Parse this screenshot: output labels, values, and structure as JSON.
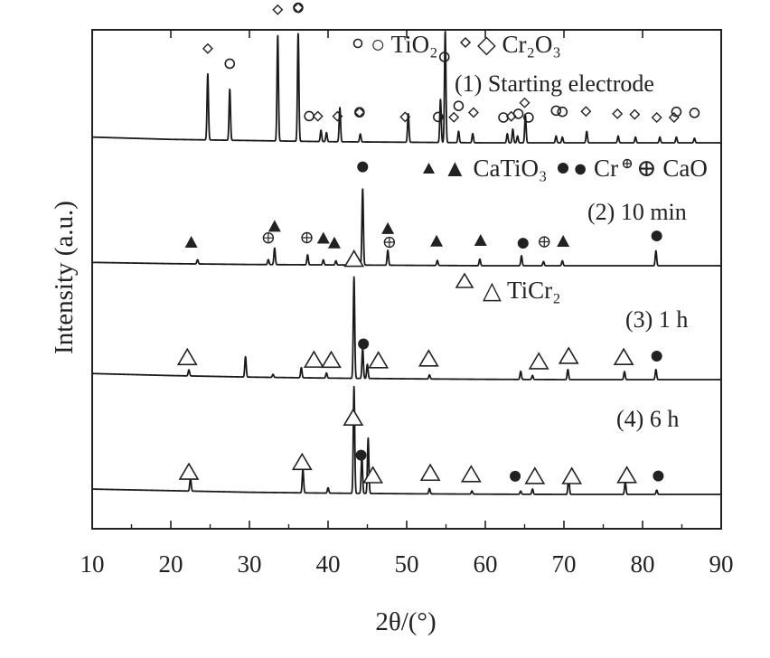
{
  "chart_data": {
    "type": "line",
    "title": "",
    "xlabel": "2θ/(°)",
    "ylabel": "Intensity (a.u.)",
    "xlim": [
      10,
      90
    ],
    "xticks": [
      10,
      20,
      30,
      40,
      50,
      60,
      70,
      80,
      90
    ],
    "y_tick_labels": "none",
    "grid": false,
    "legend": {
      "TiO2": "○ TiO₂",
      "Cr2O3": "◇ Cr₂O₃",
      "CaTiO3": "▲ CaTiO₃",
      "Cr": "● Cr",
      "CaO": "⊕ CaO",
      "TiCr2": "△ TiCr₂"
    },
    "series": [
      {
        "name": "(1) Starting electrode",
        "baseline": [
          [
            10,
            0.05
          ],
          [
            20,
            0.03
          ],
          [
            30,
            0.02
          ],
          [
            40,
            0.01
          ],
          [
            50,
            0.005
          ],
          [
            60,
            0.0
          ],
          [
            70,
            0.0
          ],
          [
            80,
            0.0
          ],
          [
            90,
            0.0
          ]
        ],
        "peaks": [
          {
            "x": 24.7,
            "h": 0.58,
            "phase": "Cr2O3"
          },
          {
            "x": 27.5,
            "h": 0.45,
            "phase": "TiO2"
          },
          {
            "x": 33.6,
            "h": 0.93,
            "phase": "Cr2O3"
          },
          {
            "x": 36.2,
            "h": 0.95,
            "phase": "Cr2O3"
          },
          {
            "x": 39.1,
            "h": 0.1,
            "phase": "TiO2"
          },
          {
            "x": 39.8,
            "h": 0.08,
            "phase": "Cr2O3"
          },
          {
            "x": 41.5,
            "h": 0.3,
            "phase": "Cr2O3"
          },
          {
            "x": 44.1,
            "h": 0.07,
            "phase": "TiO2"
          },
          {
            "x": 50.2,
            "h": 0.25,
            "phase": "Cr2O3"
          },
          {
            "x": 54.3,
            "h": 0.38,
            "phase": "TiO2"
          },
          {
            "x": 54.9,
            "h": 0.98,
            "phase": "Cr2O3"
          },
          {
            "x": 56.6,
            "h": 0.1,
            "phase": "TiO2"
          },
          {
            "x": 58.4,
            "h": 0.08,
            "phase": "Cr2O3"
          },
          {
            "x": 62.8,
            "h": 0.08,
            "phase": "TiO2"
          },
          {
            "x": 63.5,
            "h": 0.12,
            "phase": "Cr2O3"
          },
          {
            "x": 64.1,
            "h": 0.06,
            "phase": "TiO2"
          },
          {
            "x": 65.1,
            "h": 0.24,
            "phase": "Cr2O3"
          },
          {
            "x": 69.0,
            "h": 0.06,
            "phase": "TiO2"
          },
          {
            "x": 69.8,
            "h": 0.05,
            "phase": "TiO2"
          },
          {
            "x": 72.9,
            "h": 0.1,
            "phase": "Cr2O3"
          },
          {
            "x": 76.9,
            "h": 0.06,
            "phase": "Cr2O3"
          },
          {
            "x": 79.1,
            "h": 0.05,
            "phase": "Cr2O3"
          },
          {
            "x": 82.2,
            "h": 0.05,
            "phase": "Cr2O3"
          },
          {
            "x": 84.3,
            "h": 0.05,
            "phase": "Cr2O3"
          },
          {
            "x": 86.6,
            "h": 0.04,
            "phase": "TiO2"
          }
        ]
      },
      {
        "name": "(2) 10 min",
        "baseline": [
          [
            10,
            0.04
          ],
          [
            20,
            0.025
          ],
          [
            30,
            0.015
          ],
          [
            40,
            0.01
          ],
          [
            50,
            0.005
          ],
          [
            60,
            0.0
          ],
          [
            70,
            0.0
          ],
          [
            80,
            0.0
          ],
          [
            90,
            0.0
          ]
        ],
        "peaks": [
          {
            "x": 23.4,
            "h": 0.05,
            "phase": "CaTiO3"
          },
          {
            "x": 32.4,
            "h": 0.06,
            "phase": "CaO"
          },
          {
            "x": 33.2,
            "h": 0.2,
            "phase": "CaTiO3"
          },
          {
            "x": 37.4,
            "h": 0.12,
            "phase": "CaO"
          },
          {
            "x": 39.4,
            "h": 0.06,
            "phase": "CaTiO3"
          },
          {
            "x": 41.0,
            "h": 0.05,
            "phase": "CaTiO3"
          },
          {
            "x": 44.4,
            "h": 0.92,
            "phase": "Cr"
          },
          {
            "x": 47.6,
            "h": 0.18,
            "phase": "CaTiO3"
          },
          {
            "x": 53.9,
            "h": 0.06,
            "phase": "CaTiO3"
          },
          {
            "x": 59.3,
            "h": 0.08,
            "phase": "CaTiO3"
          },
          {
            "x": 64.6,
            "h": 0.12,
            "phase": "Cr"
          },
          {
            "x": 67.4,
            "h": 0.05,
            "phase": "CaO"
          },
          {
            "x": 69.8,
            "h": 0.06,
            "phase": "CaTiO3"
          },
          {
            "x": 81.7,
            "h": 0.18,
            "phase": "Cr"
          }
        ]
      },
      {
        "name": "(3) 1 h",
        "baseline": [
          [
            10,
            0.06
          ],
          [
            20,
            0.04
          ],
          [
            30,
            0.025
          ],
          [
            40,
            0.015
          ],
          [
            50,
            0.008
          ],
          [
            60,
            0.003
          ],
          [
            70,
            0.0
          ],
          [
            80,
            0.0
          ],
          [
            90,
            0.0
          ]
        ],
        "peaks": [
          {
            "x": 22.3,
            "h": 0.06,
            "phase": "TiCr2"
          },
          {
            "x": 29.5,
            "h": 0.2,
            "phase": "unlabeled"
          },
          {
            "x": 33.0,
            "h": 0.03,
            "phase": "unlabeled"
          },
          {
            "x": 36.6,
            "h": 0.1,
            "phase": "TiCr2"
          },
          {
            "x": 39.8,
            "h": 0.05,
            "phase": "TiCr2"
          },
          {
            "x": 43.3,
            "h": 1.0,
            "phase": "TiCr2"
          },
          {
            "x": 44.4,
            "h": 0.3,
            "phase": "Cr"
          },
          {
            "x": 45.0,
            "h": 0.14,
            "phase": "TiCr2"
          },
          {
            "x": 52.9,
            "h": 0.04,
            "phase": "TiCr2"
          },
          {
            "x": 64.5,
            "h": 0.08,
            "phase": "Cr"
          },
          {
            "x": 66.0,
            "h": 0.04,
            "phase": "TiCr2"
          },
          {
            "x": 70.5,
            "h": 0.1,
            "phase": "TiCr2"
          },
          {
            "x": 77.7,
            "h": 0.08,
            "phase": "TiCr2"
          },
          {
            "x": 81.7,
            "h": 0.1,
            "phase": "Cr"
          }
        ]
      },
      {
        "name": "(4) 6 h",
        "baseline": [
          [
            10,
            0.05
          ],
          [
            20,
            0.035
          ],
          [
            30,
            0.02
          ],
          [
            40,
            0.012
          ],
          [
            50,
            0.006
          ],
          [
            60,
            0.002
          ],
          [
            70,
            0.0
          ],
          [
            80,
            0.0
          ],
          [
            90,
            0.0
          ]
        ],
        "peaks": [
          {
            "x": 22.5,
            "h": 0.12,
            "phase": "TiCr2"
          },
          {
            "x": 36.8,
            "h": 0.22,
            "phase": "TiCr2"
          },
          {
            "x": 40.0,
            "h": 0.05,
            "phase": "TiCr2"
          },
          {
            "x": 43.3,
            "h": 1.0,
            "phase": "TiCr2"
          },
          {
            "x": 44.3,
            "h": 0.35,
            "phase": "Cr"
          },
          {
            "x": 45.1,
            "h": 0.52,
            "phase": "TiCr2"
          },
          {
            "x": 52.9,
            "h": 0.05,
            "phase": "TiCr2"
          },
          {
            "x": 58.3,
            "h": 0.03,
            "phase": "TiCr2"
          },
          {
            "x": 64.5,
            "h": 0.03,
            "phase": "Cr"
          },
          {
            "x": 66.0,
            "h": 0.05,
            "phase": "TiCr2"
          },
          {
            "x": 70.6,
            "h": 0.16,
            "phase": "TiCr2"
          },
          {
            "x": 77.8,
            "h": 0.12,
            "phase": "TiCr2"
          },
          {
            "x": 81.8,
            "h": 0.04,
            "phase": "Cr"
          }
        ]
      }
    ],
    "markers": [
      {
        "series": 0,
        "phase": "Cr2O3",
        "x": 24.7
      },
      {
        "series": 0,
        "phase": "TiO2",
        "x": 27.5
      },
      {
        "series": 0,
        "phase": "Cr2O3",
        "x": 33.6
      },
      {
        "series": 0,
        "phase": "Cr2O3",
        "x": 36.2
      },
      {
        "series": 0,
        "phase": "TiO2",
        "x": 36.2
      },
      {
        "series": 0,
        "phase": "TiO2",
        "x": 37.6
      },
      {
        "series": 0,
        "phase": "Cr2O3",
        "x": 38.7
      },
      {
        "series": 0,
        "phase": "Cr2O3",
        "x": 41.2
      },
      {
        "series": 0,
        "phase": "TiO2",
        "x": 44.0
      },
      {
        "series": 0,
        "phase": "Cr2O3",
        "x": 44.0
      },
      {
        "series": 0,
        "phase": "Cr2O3",
        "x": 49.8
      },
      {
        "series": 0,
        "phase": "TiO2",
        "x": 54.0
      },
      {
        "series": 0,
        "phase": "TiO2",
        "x": 54.8
      },
      {
        "series": 0,
        "phase": "Cr2O3",
        "x": 56.0
      },
      {
        "series": 0,
        "phase": "TiO2",
        "x": 56.6
      },
      {
        "series": 0,
        "phase": "Cr2O3",
        "x": 58.5
      },
      {
        "series": 0,
        "phase": "TiO2",
        "x": 62.3
      },
      {
        "series": 0,
        "phase": "Cr2O3",
        "x": 63.3
      },
      {
        "series": 0,
        "phase": "TiO2",
        "x": 64.2
      },
      {
        "series": 0,
        "phase": "Cr2O3",
        "x": 65.0
      },
      {
        "series": 0,
        "phase": "TiO2",
        "x": 65.5
      },
      {
        "series": 0,
        "phase": "TiO2",
        "x": 69.0
      },
      {
        "series": 0,
        "phase": "TiO2",
        "x": 69.8
      },
      {
        "series": 0,
        "phase": "Cr2O3",
        "x": 72.8
      },
      {
        "series": 0,
        "phase": "Cr2O3",
        "x": 76.8
      },
      {
        "series": 0,
        "phase": "Cr2O3",
        "x": 79.0
      },
      {
        "series": 0,
        "phase": "Cr2O3",
        "x": 81.8
      },
      {
        "series": 0,
        "phase": "Cr2O3",
        "x": 84.0
      },
      {
        "series": 0,
        "phase": "TiO2",
        "x": 84.3
      },
      {
        "series": 0,
        "phase": "TiO2",
        "x": 86.6
      },
      {
        "series": 1,
        "phase": "CaTiO3",
        "x": 22.6
      },
      {
        "series": 1,
        "phase": "CaTiO3",
        "x": 33.2
      },
      {
        "series": 1,
        "phase": "CaO",
        "x": 32.4
      },
      {
        "series": 1,
        "phase": "CaO",
        "x": 37.3
      },
      {
        "series": 1,
        "phase": "CaTiO3",
        "x": 39.4
      },
      {
        "series": 1,
        "phase": "CaTiO3",
        "x": 40.8
      },
      {
        "series": 1,
        "phase": "Cr",
        "x": 44.4
      },
      {
        "series": 1,
        "phase": "CaO",
        "x": 47.8
      },
      {
        "series": 1,
        "phase": "CaTiO3",
        "x": 47.6
      },
      {
        "series": 1,
        "phase": "CaTiO3",
        "x": 53.8
      },
      {
        "series": 1,
        "phase": "CaTiO3",
        "x": 59.4
      },
      {
        "series": 1,
        "phase": "Cr",
        "x": 64.8
      },
      {
        "series": 1,
        "phase": "CaO",
        "x": 67.5
      },
      {
        "series": 1,
        "phase": "CaTiO3",
        "x": 69.9
      },
      {
        "series": 1,
        "phase": "Cr",
        "x": 81.8
      },
      {
        "series": 2,
        "phase": "TiCr2",
        "x": 22.1
      },
      {
        "series": 2,
        "phase": "TiCr2",
        "x": 38.2
      },
      {
        "series": 2,
        "phase": "TiCr2",
        "x": 40.4
      },
      {
        "series": 2,
        "phase": "TiCr2",
        "x": 43.3
      },
      {
        "series": 2,
        "phase": "Cr",
        "x": 44.5
      },
      {
        "series": 2,
        "phase": "TiCr2",
        "x": 46.4
      },
      {
        "series": 2,
        "phase": "TiCr2",
        "x": 52.8
      },
      {
        "series": 2,
        "phase": "TiCr2",
        "x": 66.8
      },
      {
        "series": 2,
        "phase": "TiCr2",
        "x": 70.6
      },
      {
        "series": 2,
        "phase": "TiCr2",
        "x": 77.6
      },
      {
        "series": 2,
        "phase": "Cr",
        "x": 81.8
      },
      {
        "series": 3,
        "phase": "TiCr2",
        "x": 22.3
      },
      {
        "series": 3,
        "phase": "TiCr2",
        "x": 36.7
      },
      {
        "series": 3,
        "phase": "TiCr2",
        "x": 43.2
      },
      {
        "series": 3,
        "phase": "Cr",
        "x": 44.2
      },
      {
        "series": 3,
        "phase": "TiCr2",
        "x": 45.7
      },
      {
        "series": 3,
        "phase": "TiCr2",
        "x": 53.0
      },
      {
        "series": 3,
        "phase": "TiCr2",
        "x": 58.2
      },
      {
        "series": 3,
        "phase": "Cr",
        "x": 63.8
      },
      {
        "series": 3,
        "phase": "TiCr2",
        "x": 66.3
      },
      {
        "series": 3,
        "phase": "TiCr2",
        "x": 71.0
      },
      {
        "series": 3,
        "phase": "TiCr2",
        "x": 78.0
      },
      {
        "series": 3,
        "phase": "Cr",
        "x": 82.0
      }
    ]
  }
}
